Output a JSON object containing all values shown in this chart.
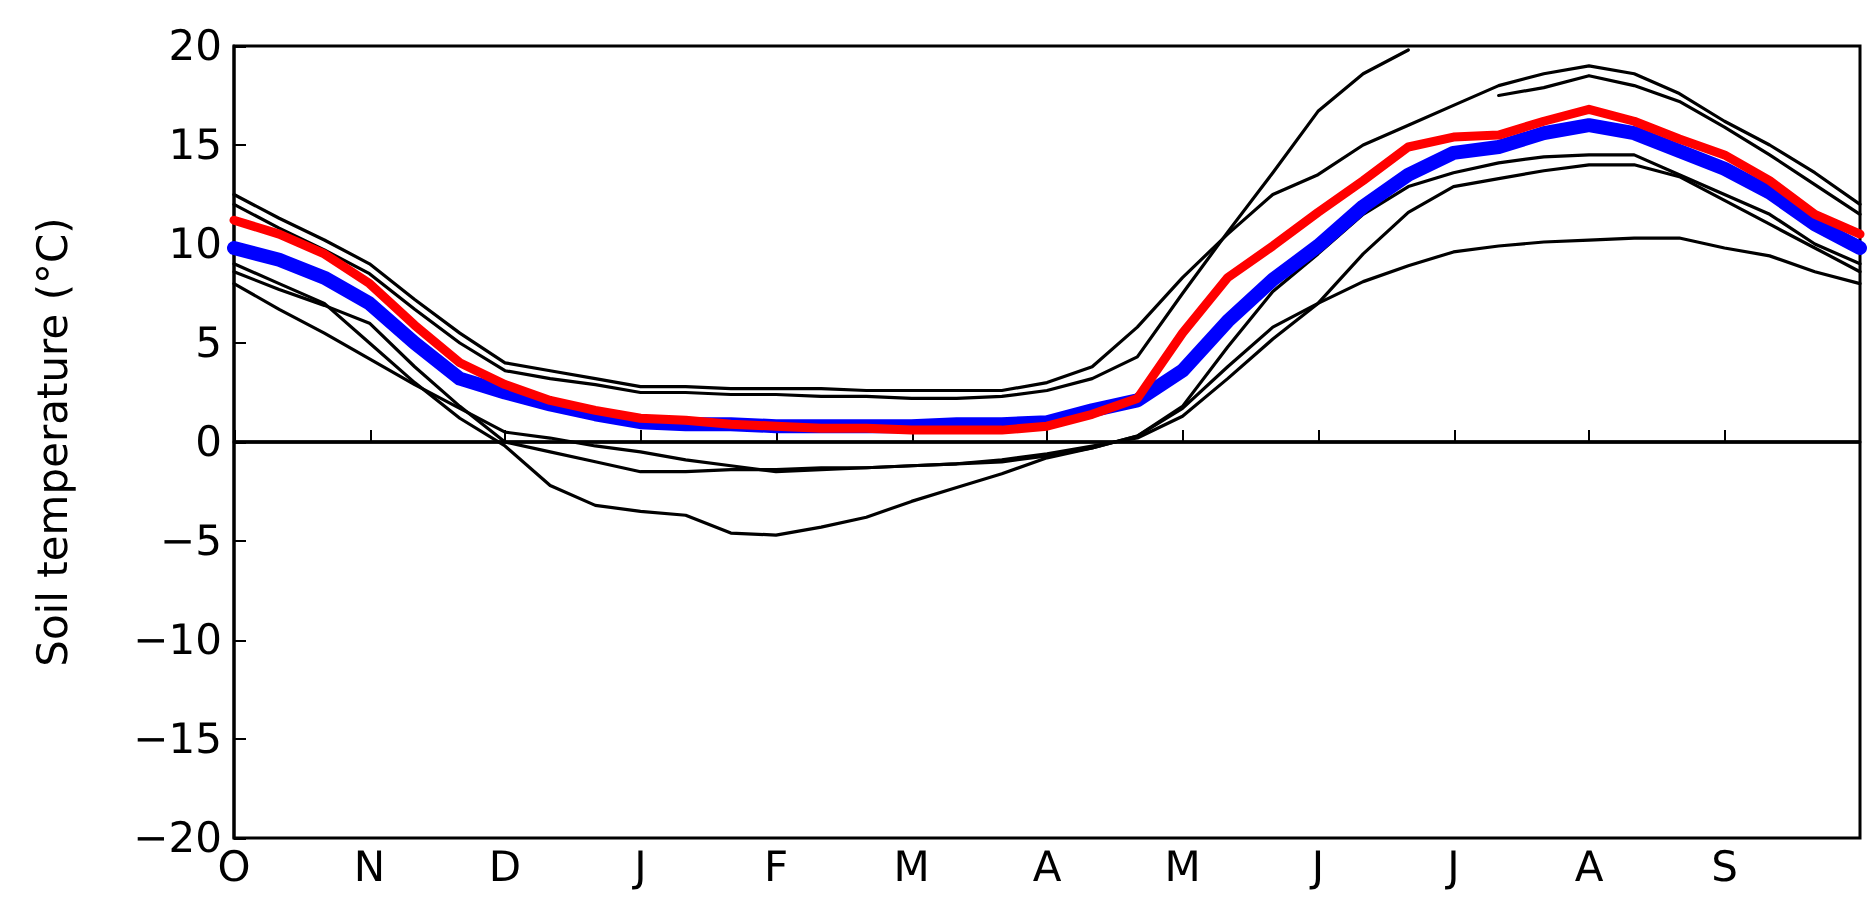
{
  "chart_data": {
    "type": "line",
    "ylabel": "Soil temperature (°C)",
    "categories": [
      "O",
      null,
      null,
      "N",
      null,
      null,
      "D",
      null,
      null,
      "J",
      null,
      null,
      "F",
      null,
      null,
      "M",
      null,
      null,
      "A",
      null,
      null,
      "M",
      null,
      null,
      "J",
      null,
      null,
      "J",
      null,
      null,
      "A",
      null,
      null,
      "S",
      null,
      null,
      null
    ],
    "ylim": [
      -20,
      20
    ],
    "yticks": [
      {
        "value": -20,
        "label": "−20"
      },
      {
        "value": -15,
        "label": "−15"
      },
      {
        "value": -10,
        "label": "−10"
      },
      {
        "value": -5,
        "label": "−5"
      },
      0,
      5,
      10,
      15,
      20
    ],
    "grid": false,
    "marker": "none",
    "line_style": "solid",
    "ref_lines": [
      {
        "axis": "y",
        "value": 0,
        "color": "#000000"
      }
    ],
    "series": [
      {
        "color": "#000000",
        "values": [
          12.5,
          11.3,
          10.2,
          9,
          7.2,
          5.5,
          4,
          3.6,
          3.2,
          2.8,
          2.8,
          2.7,
          2.7,
          2.7,
          2.6,
          2.6,
          2.6,
          2.6,
          3.0,
          3.8,
          5.8,
          8.3,
          10.5,
          12.5,
          13.5,
          15,
          16,
          17,
          18,
          18.6,
          19,
          18.6,
          17.6,
          16.2,
          15,
          13.6,
          12
        ]
      },
      {
        "color": "#000000",
        "values": [
          8.6,
          7.7,
          6.9,
          6,
          3.8,
          1.8,
          0,
          -0.5,
          -1,
          -1.5,
          -1.5,
          -1.4,
          -1.4,
          -1.3,
          -1.3,
          -1.2,
          -1.1,
          -0.9,
          -0.6,
          -0.2,
          0.2,
          1.3,
          3.2,
          5.2,
          7.0,
          9.5,
          11.6,
          12.9,
          13.3,
          13.7,
          14,
          14,
          13.4,
          12.2,
          11,
          9.8,
          8.6
        ]
      },
      {
        "color": "#000000",
        "values": [
          9,
          8,
          7,
          5,
          3,
          1.2,
          -0.2,
          -2.2,
          -3.2,
          -3.5,
          -3.7,
          -4.6,
          -4.7,
          -4.3,
          -3.8,
          -3,
          -2.3,
          -1.6,
          -0.8,
          -0.3,
          0.3,
          1.8,
          4.8,
          7.6,
          9.5,
          11.5,
          12.9,
          13.6,
          14.1,
          14.4,
          14.5,
          14.5,
          13.5,
          12.5,
          11.5,
          10,
          9
        ]
      },
      {
        "color": "#000000",
        "values": [
          8,
          6.7,
          5.5,
          4.2,
          2.9,
          1.7,
          0.5,
          0.2,
          -0.2,
          -0.5,
          -0.9,
          -1.2,
          -1.5,
          -1.4,
          -1.3,
          -1.2,
          -1.1,
          -1,
          -0.7,
          -0.3,
          0.3,
          1.7,
          3.8,
          5.8,
          7,
          8.1,
          8.9,
          9.6,
          9.9,
          10.1,
          10.2,
          10.3,
          10.3,
          9.8,
          9.4,
          8.6,
          8
        ]
      },
      {
        "color": "#000000",
        "values": [
          12,
          10.8,
          9.7,
          8.5,
          6.7,
          5,
          3.6,
          3.2,
          2.9,
          2.5,
          2.5,
          2.4,
          2.4,
          2.3,
          2.3,
          2.2,
          2.2,
          2.3,
          2.6,
          3.2,
          4.3,
          7.5,
          10.6,
          13.6,
          16.7,
          18.6,
          19.8,
          null,
          17.5,
          17.9,
          18.5,
          18,
          17.2,
          15.9,
          14.5,
          13,
          11.5
        ]
      },
      {
        "color": "#0000ff",
        "values": [
          9.8,
          9.2,
          8.3,
          7,
          5,
          3.2,
          2.5,
          1.9,
          1.4,
          1,
          0.9,
          0.9,
          0.8,
          0.8,
          0.8,
          0.8,
          0.9,
          0.9,
          1,
          1.6,
          2.1,
          3.6,
          6.1,
          8.2,
          9.9,
          11.9,
          13.5,
          14.6,
          14.9,
          15.6,
          16,
          15.6,
          14.7,
          13.8,
          12.6,
          11,
          9.8
        ]
      },
      {
        "color": "#ff0000",
        "values": [
          11.2,
          10.5,
          9.5,
          8,
          5.9,
          4,
          2.9,
          2.1,
          1.6,
          1.2,
          1.1,
          0.9,
          0.8,
          0.7,
          0.7,
          0.6,
          0.6,
          0.6,
          0.8,
          1.4,
          2.2,
          5.5,
          8.3,
          9.9,
          11.6,
          13.2,
          14.9,
          15.4,
          15.5,
          16.2,
          16.8,
          16.2,
          15.3,
          14.5,
          13.2,
          11.5,
          10.5
        ]
      }
    ]
  }
}
